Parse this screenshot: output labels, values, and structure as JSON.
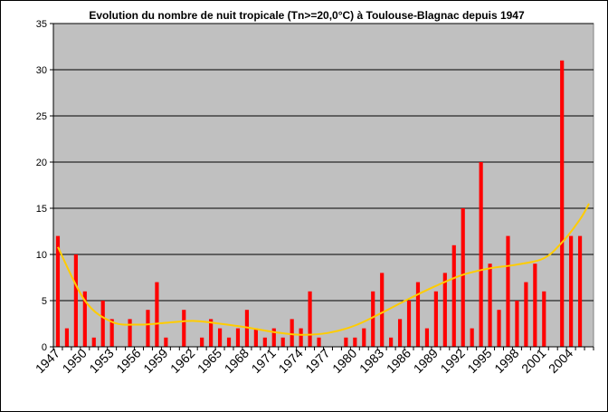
{
  "chart_data": {
    "type": "bar",
    "title": "Evolution du nombre de  nuit tropicale (Tn>=20,0°C)  à Toulouse-Blagnac depuis 1947",
    "xlabel": "",
    "ylabel": "",
    "ylim": [
      0,
      35
    ],
    "yticks": [
      0,
      5,
      10,
      15,
      20,
      25,
      30,
      35
    ],
    "x_tick_labels": [
      "1947",
      "1950",
      "1953",
      "1956",
      "1959",
      "1962",
      "1965",
      "1968",
      "1971",
      "1974",
      "1977",
      "1980",
      "1983",
      "1986",
      "1989",
      "1992",
      "1995",
      "1998",
      "2001",
      "2004"
    ],
    "grid": true,
    "legend": "none",
    "colors": {
      "bars": "#ff0000",
      "trend": "#ffcc00",
      "plot_background": "#c0c0c0",
      "gridlines": "#000000"
    },
    "categories": [
      1947,
      1948,
      1949,
      1950,
      1951,
      1952,
      1953,
      1954,
      1955,
      1956,
      1957,
      1958,
      1959,
      1960,
      1961,
      1962,
      1963,
      1964,
      1965,
      1966,
      1967,
      1968,
      1969,
      1970,
      1971,
      1972,
      1973,
      1974,
      1975,
      1976,
      1977,
      1978,
      1979,
      1980,
      1981,
      1982,
      1983,
      1984,
      1985,
      1986,
      1987,
      1988,
      1989,
      1990,
      1991,
      1992,
      1993,
      1994,
      1995,
      1996,
      1997,
      1998,
      1999,
      2000,
      2001,
      2002,
      2003,
      2004,
      2005,
      2006
    ],
    "values": [
      12,
      2,
      10,
      6,
      1,
      5,
      3,
      0,
      3,
      0,
      4,
      7,
      1,
      0,
      4,
      0,
      1,
      3,
      2,
      1,
      2,
      4,
      2,
      1,
      2,
      1,
      3,
      2,
      6,
      1,
      0,
      0,
      1,
      1,
      2,
      6,
      8,
      1,
      3,
      5,
      7,
      2,
      6,
      8,
      11,
      15,
      2,
      20,
      9,
      4,
      12,
      5,
      7,
      9,
      6,
      0,
      31,
      12,
      12,
      0
    ],
    "trendline": {
      "type": "polynomial",
      "points": [
        [
          1947,
          10.8
        ],
        [
          1950,
          5.0
        ],
        [
          1953,
          2.7
        ],
        [
          1956,
          2.4
        ],
        [
          1959,
          2.6
        ],
        [
          1962,
          2.8
        ],
        [
          1965,
          2.5
        ],
        [
          1968,
          2.1
        ],
        [
          1971,
          1.6
        ],
        [
          1974,
          1.3
        ],
        [
          1977,
          1.5
        ],
        [
          1980,
          2.3
        ],
        [
          1983,
          3.7
        ],
        [
          1986,
          5.2
        ],
        [
          1989,
          6.6
        ],
        [
          1992,
          7.8
        ],
        [
          1995,
          8.5
        ],
        [
          1998,
          8.9
        ],
        [
          2001,
          9.6
        ],
        [
          2003,
          11.3
        ],
        [
          2005,
          13.8
        ],
        [
          2006,
          15.5
        ]
      ]
    }
  }
}
